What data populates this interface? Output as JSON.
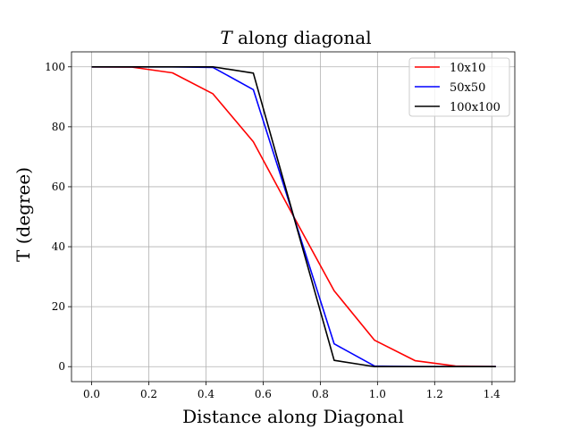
{
  "chart_data": {
    "type": "line",
    "title_math": "T",
    "title_rest": " along diagonal",
    "xlabel": "Distance along Diagonal",
    "ylabel": "T (degree)",
    "xlim": [
      -0.0705,
      1.4805
    ],
    "ylim": [
      -5,
      105
    ],
    "xticks": [
      0.0,
      0.2,
      0.4,
      0.6,
      0.8,
      1.0,
      1.2,
      1.4
    ],
    "xtick_labels": [
      "0.0",
      "0.2",
      "0.4",
      "0.6",
      "0.8",
      "1.0",
      "1.2",
      "1.4"
    ],
    "yticks": [
      0,
      20,
      40,
      60,
      80,
      100
    ],
    "ytick_labels": [
      "0",
      "20",
      "40",
      "60",
      "80",
      "100"
    ],
    "grid": true,
    "legend_position": "top-right",
    "series": [
      {
        "name": "10x10",
        "color": "#ff0000",
        "x": [
          0.0,
          0.1414,
          0.2828,
          0.4243,
          0.5657,
          0.7071,
          0.8485,
          0.9899,
          1.1314,
          1.2728,
          1.4142
        ],
        "y": [
          100,
          99.9,
          98,
          91,
          75,
          50,
          25.3,
          8.8,
          2.0,
          0.2,
          0.0
        ]
      },
      {
        "name": "50x50",
        "color": "#0000ff",
        "x": [
          0.0,
          0.1414,
          0.2828,
          0.4243,
          0.5657,
          0.7071,
          0.8485,
          0.9899,
          1.1314,
          1.2728,
          1.4142
        ],
        "y": [
          100,
          100,
          100,
          99.8,
          92.4,
          50,
          7.6,
          0.2,
          0.0,
          0.0,
          0.0
        ]
      },
      {
        "name": "100x100",
        "color": "#000000",
        "x": [
          0.0,
          0.1414,
          0.2828,
          0.4243,
          0.5657,
          0.7071,
          0.8485,
          0.9899,
          1.1314,
          1.2728,
          1.4142
        ],
        "y": [
          100,
          100,
          100,
          100,
          97.9,
          50,
          2.1,
          0.0,
          0.0,
          0.0,
          0.0
        ]
      }
    ]
  }
}
